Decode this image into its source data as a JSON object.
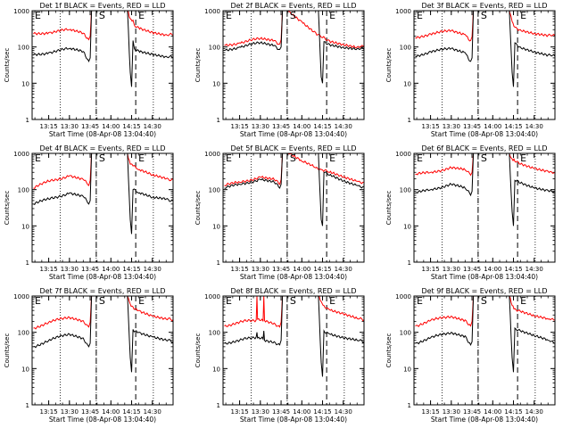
{
  "chart_data": [
    {
      "type": "line",
      "title": "Det 1f BLACK = Events, RED = LLD",
      "xlabel": "Start Time (08-Apr-08 13:04:40)",
      "ylabel": "Counts/sec",
      "yscale": "log",
      "ylim": [
        1,
        1000
      ],
      "xlim": [
        "13:03",
        "14:45"
      ],
      "x_ticks": [
        "13:15",
        "13:30",
        "13:45",
        "14:00",
        "14:15",
        "14:30"
      ],
      "y_ticks": [
        "1",
        "10",
        "100",
        "1000"
      ],
      "markers": [
        "E",
        "S",
        "E"
      ],
      "series": [
        {
          "color": "#ff0000",
          "x": [
            "13:04",
            "13:15",
            "13:30",
            "13:40",
            "13:44",
            "13:45",
            "13:46",
            "14:10",
            "14:12",
            "14:14",
            "14:16",
            "14:17",
            "14:20",
            "14:30",
            "14:40",
            "14:45"
          ],
          "values": [
            230,
            250,
            300,
            240,
            160,
            200,
            1000,
            1000,
            1000,
            600,
            550,
            400,
            350,
            260,
            220,
            210
          ]
        },
        {
          "color": "#000000",
          "x": [
            "13:04",
            "13:15",
            "13:30",
            "13:40",
            "13:44",
            "13:45",
            "13:46",
            "14:10",
            "14:12",
            "14:14",
            "14:15",
            "14:16",
            "14:17",
            "14:20",
            "14:30",
            "14:40",
            "14:45"
          ],
          "values": [
            60,
            70,
            90,
            75,
            40,
            50,
            1000,
            1000,
            1000,
            20,
            8,
            150,
            90,
            80,
            65,
            55,
            50
          ]
        }
      ]
    },
    {
      "type": "line",
      "title": "Det 2f BLACK = Events, RED = LLD",
      "xlabel": "Start Time (08-Apr-08 13:04:40)",
      "ylabel": "Counts/sec",
      "yscale": "log",
      "ylim": [
        1,
        1000
      ],
      "xlim": [
        "13:03",
        "14:45"
      ],
      "x_ticks": [
        "13:15",
        "13:30",
        "13:45",
        "14:00",
        "14:15",
        "14:30"
      ],
      "y_ticks": [
        "1",
        "10",
        "100",
        "1000"
      ],
      "markers": [
        "E",
        "S",
        "E"
      ],
      "series": [
        {
          "color": "#ff0000",
          "x": [
            "13:04",
            "13:15",
            "13:30",
            "13:40",
            "13:44",
            "13:45",
            "13:46",
            "13:50",
            "14:00",
            "14:10",
            "14:15",
            "14:20",
            "14:30",
            "14:40",
            "14:45"
          ],
          "values": [
            110,
            130,
            170,
            150,
            120,
            160,
            1000,
            1000,
            500,
            250,
            180,
            150,
            120,
            100,
            100
          ]
        },
        {
          "color": "#000000",
          "x": [
            "13:04",
            "13:15",
            "13:30",
            "13:40",
            "13:44",
            "13:45",
            "13:46",
            "14:10",
            "14:12",
            "14:14",
            "14:15",
            "14:16",
            "14:20",
            "14:30",
            "14:40",
            "14:45"
          ],
          "values": [
            80,
            100,
            130,
            110,
            85,
            100,
            1000,
            1000,
            1000,
            15,
            10,
            140,
            120,
            100,
            90,
            85
          ]
        }
      ]
    },
    {
      "type": "line",
      "title": "Det 3f BLACK = Events, RED = LLD",
      "xlabel": "Start Time (08-Apr-08 13:04:40)",
      "ylabel": "Counts/sec",
      "yscale": "log",
      "ylim": [
        1,
        1000
      ],
      "xlim": [
        "13:03",
        "14:45"
      ],
      "x_ticks": [
        "13:15",
        "13:30",
        "13:45",
        "14:00",
        "14:15",
        "14:30"
      ],
      "y_ticks": [
        "1",
        "10",
        "100",
        "1000"
      ],
      "markers": [
        "E",
        "S",
        "E"
      ],
      "series": [
        {
          "color": "#ff0000",
          "x": [
            "13:04",
            "13:15",
            "13:30",
            "13:40",
            "13:44",
            "13:45",
            "13:46",
            "14:10",
            "14:12",
            "14:14",
            "14:16",
            "14:20",
            "14:30",
            "14:40",
            "14:45"
          ],
          "values": [
            180,
            230,
            280,
            220,
            150,
            190,
            1000,
            1000,
            1000,
            500,
            350,
            300,
            240,
            210,
            200
          ]
        },
        {
          "color": "#000000",
          "x": [
            "13:04",
            "13:15",
            "13:30",
            "13:40",
            "13:44",
            "13:45",
            "13:46",
            "14:10",
            "14:12",
            "14:14",
            "14:15",
            "14:16",
            "14:20",
            "14:30",
            "14:40",
            "14:45"
          ],
          "values": [
            55,
            75,
            90,
            70,
            40,
            50,
            1000,
            1000,
            1000,
            20,
            8,
            130,
            100,
            75,
            60,
            55
          ]
        }
      ]
    },
    {
      "type": "line",
      "title": "Det 4f BLACK = Events, RED = LLD",
      "xlabel": "Start Time (08-Apr-08 13:04:40)",
      "ylabel": "Counts/sec",
      "yscale": "log",
      "ylim": [
        1,
        1000
      ],
      "xlim": [
        "13:03",
        "14:45"
      ],
      "x_ticks": [
        "13:15",
        "13:30",
        "13:45",
        "14:00",
        "14:15",
        "14:30"
      ],
      "y_ticks": [
        "1",
        "10",
        "100",
        "1000"
      ],
      "markers": [
        "E",
        "S",
        "E"
      ],
      "series": [
        {
          "color": "#ff0000",
          "x": [
            "13:04",
            "13:15",
            "13:30",
            "13:40",
            "13:44",
            "13:45",
            "13:46",
            "14:10",
            "14:12",
            "14:14",
            "14:16",
            "14:20",
            "14:30",
            "14:40",
            "14:45"
          ],
          "values": [
            110,
            170,
            240,
            190,
            130,
            180,
            1000,
            1000,
            1000,
            500,
            450,
            350,
            250,
            200,
            190
          ]
        },
        {
          "color": "#000000",
          "x": [
            "13:04",
            "13:15",
            "13:30",
            "13:40",
            "13:44",
            "13:45",
            "13:46",
            "14:10",
            "14:12",
            "14:14",
            "14:15",
            "14:16",
            "14:20",
            "14:30",
            "14:40",
            "14:45"
          ],
          "values": [
            40,
            55,
            80,
            65,
            40,
            50,
            1000,
            1000,
            1000,
            15,
            6,
            100,
            80,
            60,
            55,
            50
          ]
        }
      ]
    },
    {
      "type": "line",
      "title": "Det 5f BLACK = Events, RED = LLD",
      "xlabel": "Start Time (08-Apr-08 13:04:40)",
      "ylabel": "Counts/sec",
      "yscale": "log",
      "ylim": [
        1,
        1000
      ],
      "xlim": [
        "13:03",
        "14:45"
      ],
      "x_ticks": [
        "13:15",
        "13:30",
        "13:45",
        "14:00",
        "14:15",
        "14:30"
      ],
      "y_ticks": [
        "1",
        "10",
        "100",
        "1000"
      ],
      "markers": [
        "E",
        "S",
        "E"
      ],
      "series": [
        {
          "color": "#ff0000",
          "x": [
            "13:04",
            "13:15",
            "13:30",
            "13:40",
            "13:44",
            "13:45",
            "13:46",
            "13:50",
            "14:00",
            "14:10",
            "14:15",
            "14:20",
            "14:30",
            "14:40",
            "14:45"
          ],
          "values": [
            130,
            160,
            220,
            190,
            140,
            190,
            1000,
            1000,
            600,
            400,
            350,
            300,
            220,
            170,
            160
          ]
        },
        {
          "color": "#000000",
          "x": [
            "13:04",
            "13:15",
            "13:30",
            "13:40",
            "13:44",
            "13:45",
            "13:46",
            "14:10",
            "14:12",
            "14:14",
            "14:15",
            "14:16",
            "14:20",
            "14:30",
            "14:40",
            "14:45"
          ],
          "values": [
            110,
            140,
            190,
            160,
            110,
            140,
            1000,
            1000,
            1000,
            15,
            10,
            300,
            250,
            170,
            130,
            120
          ]
        }
      ]
    },
    {
      "type": "line",
      "title": "Det 6f BLACK = Events, RED = LLD",
      "xlabel": "Start Time (08-Apr-08 13:04:40)",
      "ylabel": "Counts/sec",
      "yscale": "log",
      "ylim": [
        1,
        1000
      ],
      "xlim": [
        "13:03",
        "14:45"
      ],
      "x_ticks": [
        "13:15",
        "13:30",
        "13:45",
        "14:00",
        "14:15",
        "14:30"
      ],
      "y_ticks": [
        "1",
        "10",
        "100",
        "1000"
      ],
      "markers": [
        "E",
        "S",
        "E"
      ],
      "series": [
        {
          "color": "#ff0000",
          "x": [
            "13:04",
            "13:15",
            "13:30",
            "13:40",
            "13:44",
            "13:45",
            "13:46",
            "14:10",
            "14:12",
            "14:14",
            "14:16",
            "14:20",
            "14:30",
            "14:40",
            "14:45"
          ],
          "values": [
            260,
            300,
            400,
            350,
            250,
            300,
            1000,
            1000,
            1000,
            700,
            600,
            500,
            380,
            320,
            300
          ]
        },
        {
          "color": "#000000",
          "x": [
            "13:04",
            "13:15",
            "13:30",
            "13:40",
            "13:44",
            "13:45",
            "13:46",
            "14:10",
            "14:12",
            "14:14",
            "14:15",
            "14:16",
            "14:20",
            "14:30",
            "14:40",
            "14:45"
          ],
          "values": [
            80,
            100,
            140,
            110,
            70,
            90,
            1000,
            1000,
            1000,
            25,
            10,
            180,
            150,
            110,
            95,
            90
          ]
        }
      ]
    },
    {
      "type": "line",
      "title": "Det 7f BLACK = Events, RED = LLD",
      "xlabel": "Start Time (08-Apr-08 13:04:40)",
      "ylabel": "Counts/sec",
      "yscale": "log",
      "ylim": [
        1,
        1000
      ],
      "xlim": [
        "13:03",
        "14:45"
      ],
      "x_ticks": [
        "13:15",
        "13:30",
        "13:45",
        "14:00",
        "14:15",
        "14:30"
      ],
      "y_ticks": [
        "1",
        "10",
        "100",
        "1000"
      ],
      "markers": [
        "E",
        "S",
        "E"
      ],
      "series": [
        {
          "color": "#ff0000",
          "x": [
            "13:04",
            "13:15",
            "13:30",
            "13:40",
            "13:44",
            "13:45",
            "13:46",
            "14:10",
            "14:12",
            "14:14",
            "14:16",
            "14:20",
            "14:30",
            "14:40",
            "14:45"
          ],
          "values": [
            130,
            190,
            260,
            210,
            140,
            190,
            1000,
            1000,
            1000,
            600,
            500,
            400,
            280,
            230,
            220
          ]
        },
        {
          "color": "#000000",
          "x": [
            "13:04",
            "13:15",
            "13:30",
            "13:40",
            "13:44",
            "13:45",
            "13:46",
            "14:10",
            "14:12",
            "14:14",
            "14:15",
            "14:16",
            "14:20",
            "14:30",
            "14:40",
            "14:45"
          ],
          "values": [
            40,
            60,
            90,
            70,
            40,
            50,
            1000,
            1000,
            1000,
            20,
            8,
            120,
            100,
            75,
            60,
            55
          ]
        }
      ]
    },
    {
      "type": "line",
      "title": "Det 8f BLACK = Events, RED = LLD",
      "xlabel": "Start Time (08-Apr-08 13:04:40)",
      "ylabel": "Counts/sec",
      "yscale": "log",
      "ylim": [
        1,
        1000
      ],
      "xlim": [
        "13:03",
        "14:45"
      ],
      "x_ticks": [
        "13:15",
        "13:30",
        "13:45",
        "14:00",
        "14:15",
        "14:30"
      ],
      "y_ticks": [
        "1",
        "10",
        "100",
        "1000"
      ],
      "markers": [
        "E",
        "S",
        "E"
      ],
      "series": [
        {
          "color": "#ff0000",
          "x": [
            "13:04",
            "13:15",
            "13:27",
            "13:27.5",
            "13:28",
            "13:32",
            "13:32.5",
            "13:33",
            "13:40",
            "13:44",
            "13:45",
            "13:46",
            "14:10",
            "14:12",
            "14:14",
            "14:16",
            "14:20",
            "14:30",
            "14:40",
            "14:45"
          ],
          "values": [
            150,
            190,
            220,
            1000,
            230,
            200,
            1000,
            210,
            180,
            140,
            190,
            1000,
            1000,
            1000,
            700,
            550,
            420,
            320,
            240,
            220
          ]
        },
        {
          "color": "#000000",
          "x": [
            "13:04",
            "13:15",
            "13:27",
            "13:27.5",
            "13:28",
            "13:32",
            "13:32.5",
            "13:33",
            "13:40",
            "13:44",
            "13:45",
            "13:46",
            "14:10",
            "14:12",
            "14:14",
            "14:15",
            "14:16",
            "14:20",
            "14:30",
            "14:40",
            "14:45"
          ],
          "values": [
            50,
            60,
            75,
            100,
            70,
            65,
            110,
            60,
            55,
            45,
            60,
            1000,
            1000,
            1000,
            15,
            6,
            110,
            90,
            70,
            60,
            55
          ]
        }
      ]
    },
    {
      "type": "line",
      "title": "Det 9f BLACK = Events, RED = LLD",
      "xlabel": "Start Time (08-Apr-08 13:04:40)",
      "ylabel": "Counts/sec",
      "yscale": "log",
      "ylim": [
        1,
        1000
      ],
      "xlim": [
        "13:03",
        "14:45"
      ],
      "x_ticks": [
        "13:15",
        "13:30",
        "13:45",
        "14:00",
        "14:15",
        "14:30"
      ],
      "y_ticks": [
        "1",
        "10",
        "100",
        "1000"
      ],
      "markers": [
        "E",
        "S",
        "E"
      ],
      "series": [
        {
          "color": "#ff0000",
          "x": [
            "13:04",
            "13:15",
            "13:30",
            "13:40",
            "13:44",
            "13:45",
            "13:46",
            "14:10",
            "14:12",
            "14:14",
            "14:16",
            "14:20",
            "14:30",
            "14:40",
            "14:45"
          ],
          "values": [
            150,
            210,
            280,
            220,
            150,
            200,
            1000,
            1000,
            1000,
            550,
            450,
            380,
            280,
            230,
            220
          ]
        },
        {
          "color": "#000000",
          "x": [
            "13:04",
            "13:15",
            "13:30",
            "13:40",
            "13:44",
            "13:45",
            "13:46",
            "14:10",
            "14:12",
            "14:14",
            "14:15",
            "14:16",
            "14:20",
            "14:30",
            "14:40",
            "14:45"
          ],
          "values": [
            50,
            70,
            100,
            80,
            45,
            55,
            1000,
            1000,
            1000,
            20,
            8,
            130,
            110,
            80,
            60,
            50
          ]
        }
      ]
    }
  ]
}
